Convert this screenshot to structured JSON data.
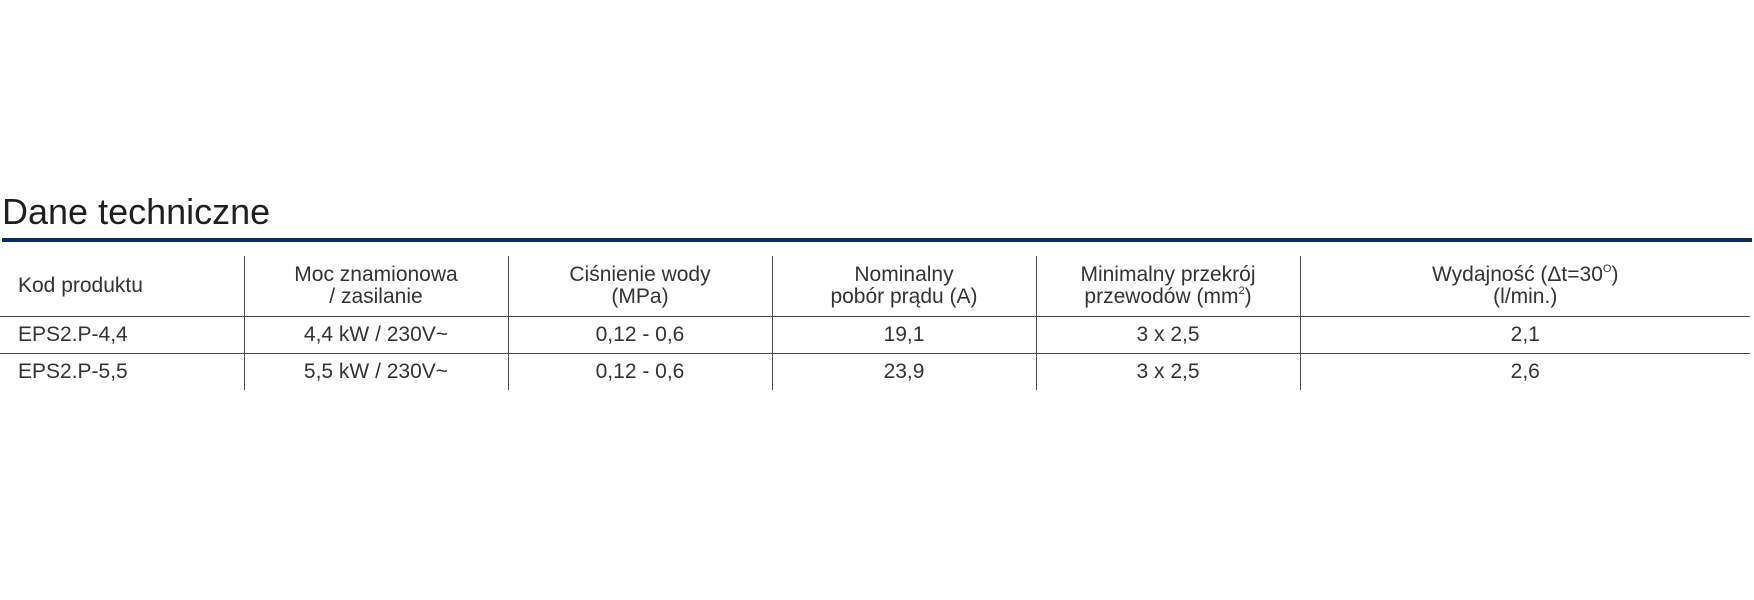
{
  "section": {
    "title": "Dane techniczne"
  },
  "table": {
    "headers": [
      {
        "line1": "Kod produktu",
        "line2": ""
      },
      {
        "line1": "Moc znamionowa",
        "line2": "/ zasilanie"
      },
      {
        "line1": "Ciśnienie wody",
        "line2": "(MPa)"
      },
      {
        "line1": "Nominalny",
        "line2": "pobór prądu (A)"
      },
      {
        "line1": "Minimalny przekrój",
        "line2_pre": "przewodów (mm",
        "line2_sup": "2",
        "line2_post": ")"
      },
      {
        "line1_pre": "Wydajność (Δt=30",
        "line1_sup": "O",
        "line1_post": ")",
        "line2": "(l/min.)"
      }
    ],
    "rows": [
      [
        "EPS2.P-4,4",
        "4,4 kW / 230V~",
        "0,12 - 0,6",
        "19,1",
        "3 x 2,5",
        "2,1"
      ],
      [
        "EPS2.P-5,5",
        "5,5 kW / 230V~",
        "0,12 - 0,6",
        "23,9",
        "3 x 2,5",
        "2,6"
      ]
    ]
  },
  "colors": {
    "title_rule": "#0e2c5e",
    "text": "#333333"
  }
}
